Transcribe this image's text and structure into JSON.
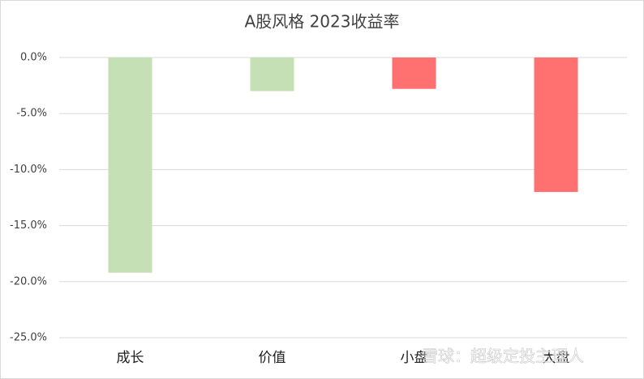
{
  "chart_data": {
    "type": "bar",
    "title": "A股风格 2023收益率",
    "categories": [
      "成长",
      "价值",
      "小盘",
      "大盘"
    ],
    "values": [
      -19.2,
      -3.0,
      -2.8,
      -12.0
    ],
    "colors": [
      "#c5e0b4",
      "#c5e0b4",
      "#ff7171",
      "#ff7171"
    ],
    "ylim": [
      -25,
      0
    ],
    "yticks": [
      {
        "value": 0,
        "label": "0.0%"
      },
      {
        "value": -5,
        "label": "-5.0%"
      },
      {
        "value": -10,
        "label": "-10.0%"
      },
      {
        "value": -15,
        "label": "-15.0%"
      },
      {
        "value": -20,
        "label": "-20.0%"
      },
      {
        "value": -25,
        "label": "-25.0%"
      }
    ],
    "grid": true,
    "watermark": "雪球：超级定投主理人"
  }
}
